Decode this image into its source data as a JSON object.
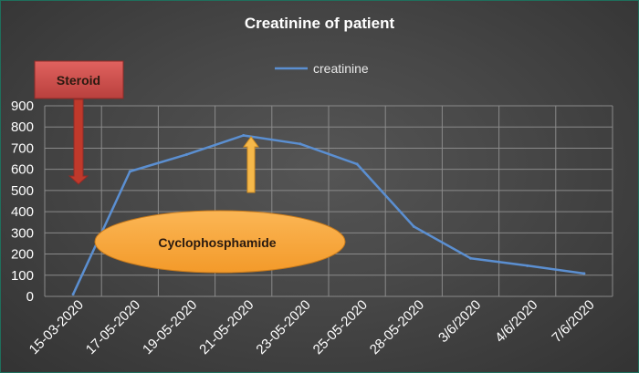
{
  "chart_data": {
    "type": "line",
    "title": "Creatinine of patient",
    "xlabel": "",
    "ylabel": "",
    "categories": [
      "15-03-2020",
      "17-05-2020",
      "19-05-2020",
      "21-05-2020",
      "23-05-2020",
      "25-05-2020",
      "28-05-2020",
      "3/6/2020",
      "4/6/2020",
      "7/6/2020"
    ],
    "series": [
      {
        "name": "creatinine",
        "values": [
          10,
          590,
          670,
          760,
          720,
          625,
          330,
          180,
          145,
          108
        ]
      }
    ],
    "ylim": [
      0,
      900
    ],
    "yticks": [
      0,
      100,
      200,
      300,
      400,
      500,
      600,
      700,
      800,
      900
    ],
    "grid": true,
    "legend_position": "top-right",
    "annotations": {
      "steroid": "Steroid",
      "cyclophosphamide": "Cyclophosphamide"
    },
    "colors": {
      "line": "#5b8fd1",
      "steroid_box": "#d2504e",
      "steroid_arrow": "#c0392b",
      "ellipse": "#f7a63a",
      "up_arrow": "#f5b84a"
    }
  }
}
